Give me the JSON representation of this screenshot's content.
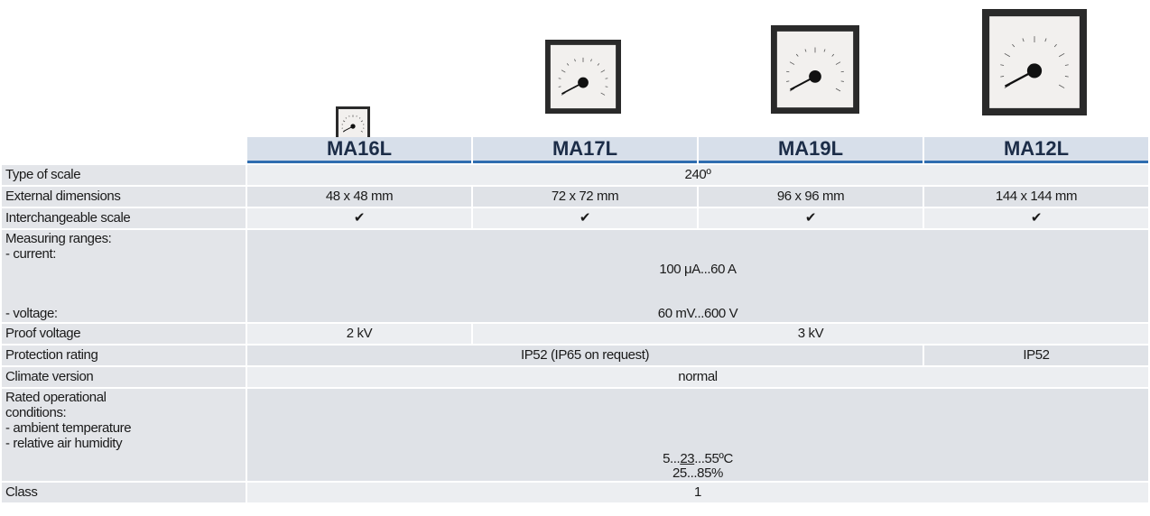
{
  "table": {
    "columns": [
      "MA16L",
      "MA17L",
      "MA19L",
      "MA12L"
    ],
    "rows": [
      {
        "label": "Type of scale",
        "values": [
          "240º"
        ]
      },
      {
        "label": "External dimensions",
        "values": [
          "48 x 48 mm",
          "72 x 72 mm",
          "96 x 96 mm",
          "144 x 144 mm"
        ]
      },
      {
        "label": "Interchangeable scale",
        "values": [
          "✔",
          "✔",
          "✔",
          "✔"
        ]
      },
      {
        "label_lines": [
          "Measuring ranges:",
          "- current:",
          "- voltage:"
        ],
        "values": [
          "100 μA...60 A",
          "60 mV...600 V"
        ]
      },
      {
        "label": "Proof voltage",
        "values": [
          "2 kV",
          "3 kV"
        ]
      },
      {
        "label": "Protection rating",
        "values": [
          "IP52  (IP65 on request)",
          "IP52"
        ]
      },
      {
        "label": "Climate version",
        "values": [
          "normal"
        ]
      },
      {
        "label_lines": [
          "Rated operational",
          "conditions:",
          "- ambient temperature",
          "- relative air humidity"
        ],
        "value_parts": [
          "5...",
          "23",
          "...55ºC"
        ],
        "values": [
          "25...85%"
        ]
      },
      {
        "label": "Class",
        "values": [
          "1"
        ]
      }
    ]
  }
}
